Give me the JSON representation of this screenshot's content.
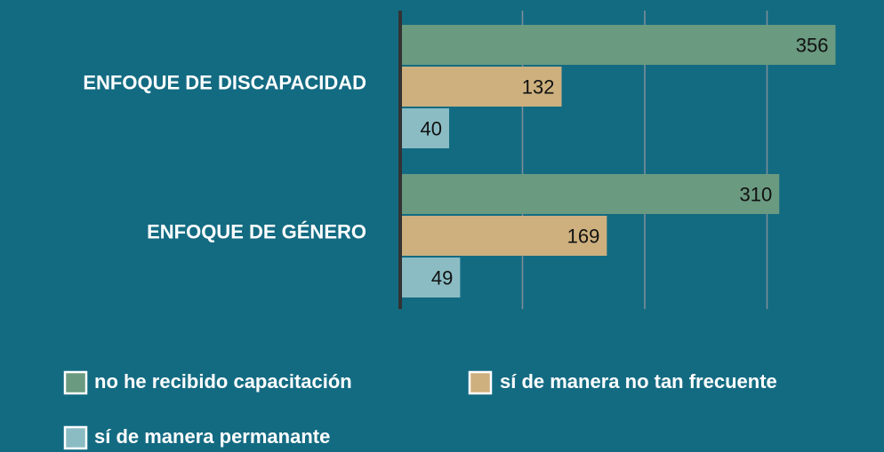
{
  "chart_data": {
    "type": "hbar",
    "categories": [
      "ENFOQUE DE DISCAPACIDAD",
      "ENFOQUE DE GÉNERO"
    ],
    "series": [
      {
        "name": "no he recibido capacitación",
        "color": "#6a9a80",
        "values": [
          356,
          310
        ]
      },
      {
        "name": "sí de manera no tan frecuente",
        "color": "#cdb07e",
        "values": [
          132,
          169
        ]
      },
      {
        "name": "sí de manera permanante",
        "color": "#8bbcc4",
        "values": [
          40,
          49
        ]
      }
    ],
    "xlim": [
      0,
      400
    ],
    "xticks": [
      0,
      100,
      200,
      300
    ],
    "grid": true
  }
}
